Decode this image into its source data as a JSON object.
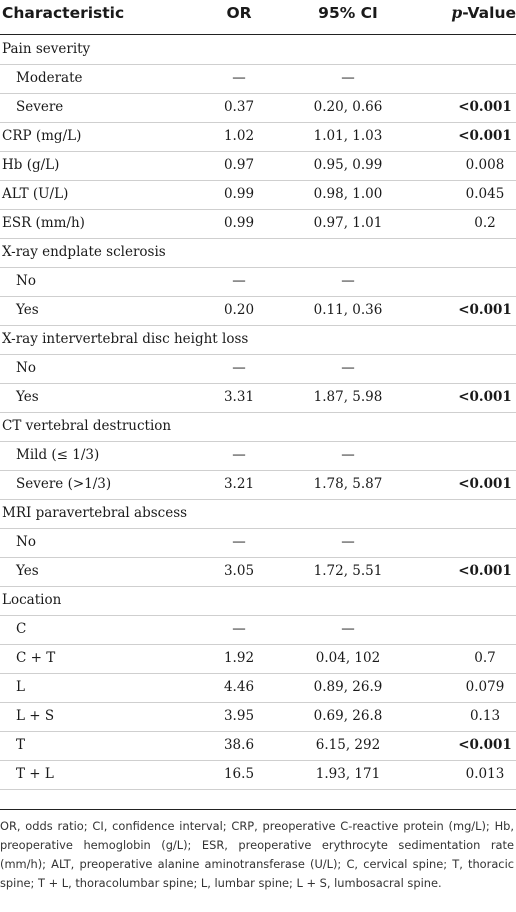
{
  "header": {
    "characteristic": "Characteristic",
    "or": "OR",
    "ci": "95% CI",
    "p": "p-Value"
  },
  "rows": [
    {
      "label": "Pain severity",
      "indent": false,
      "or": "",
      "ci": "",
      "p": "",
      "p_bold": false
    },
    {
      "label": "Moderate",
      "indent": true,
      "or": "—",
      "ci": "—",
      "p": "",
      "p_bold": false
    },
    {
      "label": "Severe",
      "indent": true,
      "or": "0.37",
      "ci": "0.20, 0.66",
      "p": "<0.001",
      "p_bold": true
    },
    {
      "label": "CRP (mg/L)",
      "indent": false,
      "or": "1.02",
      "ci": "1.01, 1.03",
      "p": "<0.001",
      "p_bold": true
    },
    {
      "label": "Hb (g/L)",
      "indent": false,
      "or": "0.97",
      "ci": "0.95, 0.99",
      "p": "0.008",
      "p_bold": false
    },
    {
      "label": "ALT (U/L)",
      "indent": false,
      "or": "0.99",
      "ci": "0.98, 1.00",
      "p": "0.045",
      "p_bold": false
    },
    {
      "label": "ESR (mm/h)",
      "indent": false,
      "or": "0.99",
      "ci": "0.97, 1.01",
      "p": "0.2",
      "p_bold": false
    },
    {
      "label": "X-ray endplate sclerosis",
      "indent": false,
      "or": "",
      "ci": "",
      "p": "",
      "p_bold": false
    },
    {
      "label": "No",
      "indent": true,
      "or": "—",
      "ci": "—",
      "p": "",
      "p_bold": false
    },
    {
      "label": "Yes",
      "indent": true,
      "or": "0.20",
      "ci": "0.11, 0.36",
      "p": "<0.001",
      "p_bold": true
    },
    {
      "label": "X-ray intervertebral disc height loss",
      "indent": false,
      "or": "",
      "ci": "",
      "p": "",
      "p_bold": false
    },
    {
      "label": "No",
      "indent": true,
      "or": "—",
      "ci": "—",
      "p": "",
      "p_bold": false
    },
    {
      "label": "Yes",
      "indent": true,
      "or": "3.31",
      "ci": "1.87, 5.98",
      "p": "<0.001",
      "p_bold": true
    },
    {
      "label": "CT vertebral destruction",
      "indent": false,
      "or": "",
      "ci": "",
      "p": "",
      "p_bold": false
    },
    {
      "label": "Mild (≤ 1/3)",
      "indent": true,
      "or": "—",
      "ci": "—",
      "p": "",
      "p_bold": false
    },
    {
      "label": "Severe (>1/3)",
      "indent": true,
      "or": "3.21",
      "ci": "1.78, 5.87",
      "p": "<0.001",
      "p_bold": true
    },
    {
      "label": "MRI paravertebral abscess",
      "indent": false,
      "or": "",
      "ci": "",
      "p": "",
      "p_bold": false
    },
    {
      "label": "No",
      "indent": true,
      "or": "—",
      "ci": "—",
      "p": "",
      "p_bold": false
    },
    {
      "label": "Yes",
      "indent": true,
      "or": "3.05",
      "ci": "1.72, 5.51",
      "p": "<0.001",
      "p_bold": true
    },
    {
      "label": "Location",
      "indent": false,
      "or": "",
      "ci": "",
      "p": "",
      "p_bold": false
    },
    {
      "label": "C",
      "indent": true,
      "or": "—",
      "ci": "—",
      "p": "",
      "p_bold": false
    },
    {
      "label": "C + T",
      "indent": true,
      "or": "1.92",
      "ci": "0.04, 102",
      "p": "0.7",
      "p_bold": false
    },
    {
      "label": "L",
      "indent": true,
      "or": "4.46",
      "ci": "0.89, 26.9",
      "p": "0.079",
      "p_bold": false
    },
    {
      "label": "L + S",
      "indent": true,
      "or": "3.95",
      "ci": "0.69, 26.8",
      "p": "0.13",
      "p_bold": false
    },
    {
      "label": "T",
      "indent": true,
      "or": "38.6",
      "ci": "6.15, 292",
      "p": "<0.001",
      "p_bold": true
    },
    {
      "label": "T + L",
      "indent": true,
      "or": "16.5",
      "ci": "1.93, 171",
      "p": "0.013",
      "p_bold": false
    }
  ],
  "footnote": "OR, odds ratio; CI, confidence interval; CRP, preoperative C-reactive protein (mg/L); Hb, preoperative hemoglobin (g/L); ESR, preoperative erythrocyte sedimentation rate (mm/h); ALT, preoperative alanine aminotransferase (U/L); C, cervical spine; T, thoracic spine; T + L, thoracolumbar spine; L, lumbar spine; L + S, lumbosacral spine."
}
